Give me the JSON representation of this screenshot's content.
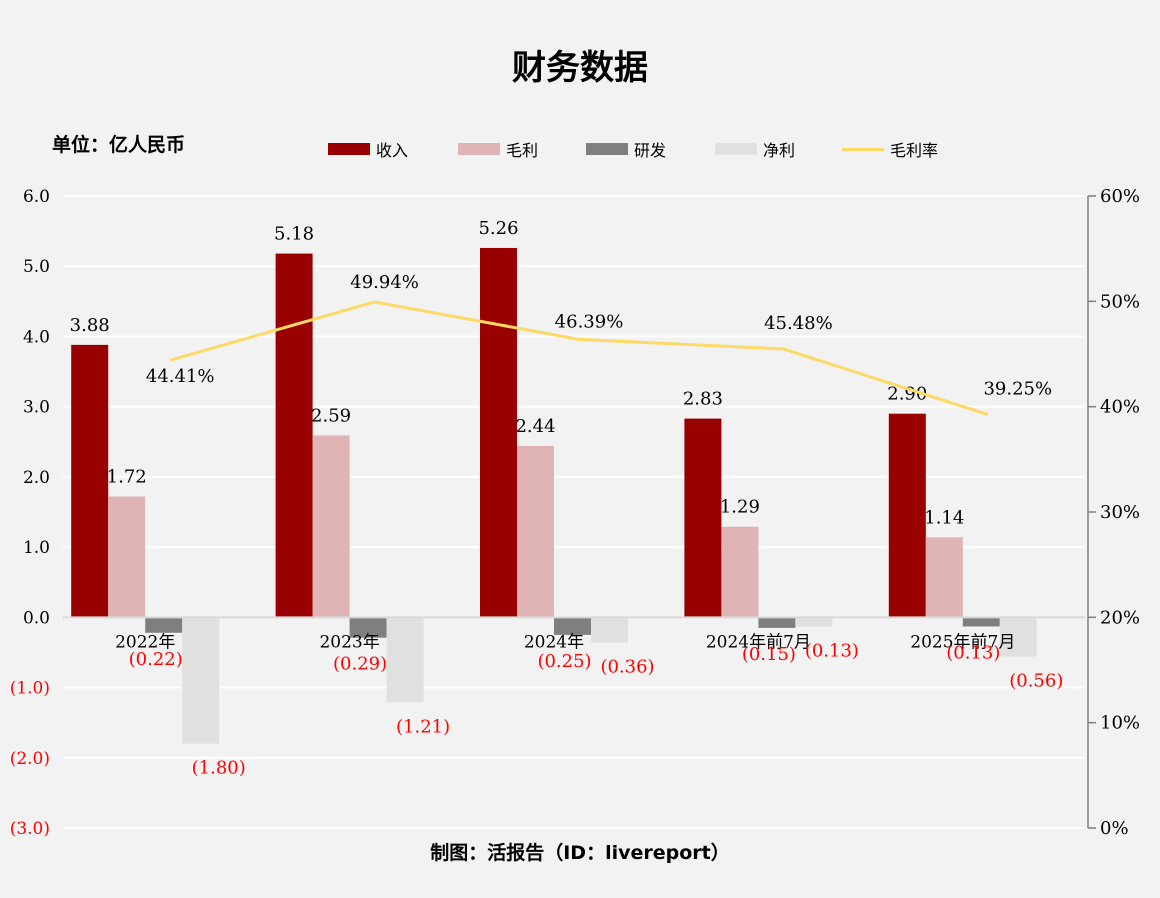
{
  "page": {
    "title": "财务数据",
    "unit_label": "单位：亿人民币",
    "credit": "制图：活报告（ID：livereport）"
  },
  "colors": {
    "revenue": "#990000",
    "gross_profit": "#e0b4b4",
    "rd": "#7f7f7f",
    "net_profit": "#e0e0e0",
    "margin": "#ffd966",
    "negative_text": "#ff0000",
    "gridline": "#ffffff",
    "axis": "#7f7f7f",
    "background": "#f2f2f2"
  },
  "chart_data": {
    "type": "bar",
    "categories": [
      "2022年",
      "2023年",
      "2024年",
      "2024年前7月",
      "2025年前7月"
    ],
    "series": [
      {
        "name": "收入",
        "kind": "bar",
        "values": [
          3.88,
          5.18,
          5.26,
          2.83,
          2.9
        ],
        "labels": [
          "3.88",
          "5.18",
          "5.26",
          "2.83",
          "2.90"
        ]
      },
      {
        "name": "毛利",
        "kind": "bar",
        "values": [
          1.72,
          2.59,
          2.44,
          1.29,
          1.14
        ],
        "labels": [
          "1.72",
          "2.59",
          "2.44",
          "1.29",
          "1.14"
        ]
      },
      {
        "name": "研发",
        "kind": "bar",
        "values": [
          -0.22,
          -0.29,
          -0.25,
          -0.15,
          -0.13
        ],
        "labels": [
          "(0.22)",
          "(0.29)",
          "(0.25)",
          "(0.15)",
          "(0.13)"
        ]
      },
      {
        "name": "净利",
        "kind": "bar",
        "values": [
          -1.8,
          -1.21,
          -0.36,
          -0.13,
          -0.56
        ],
        "labels": [
          "(1.80)",
          "(1.21)",
          "(0.36)",
          "(0.13)",
          "(0.56)"
        ]
      },
      {
        "name": "毛利率",
        "kind": "line",
        "axis": "right",
        "values": [
          44.41,
          49.94,
          46.39,
          45.48,
          39.25
        ],
        "labels": [
          "44.41%",
          "49.94%",
          "46.39%",
          "45.48%",
          "39.25%"
        ]
      }
    ],
    "y_left": {
      "range": [
        -3.0,
        6.0
      ],
      "ticks": [
        -3.0,
        -2.0,
        -1.0,
        0.0,
        1.0,
        2.0,
        3.0,
        4.0,
        5.0,
        6.0
      ],
      "tick_labels": [
        "(3.0)",
        "(2.0)",
        "(1.0)",
        "0.0",
        "1.0",
        "2.0",
        "3.0",
        "4.0",
        "5.0",
        "6.0"
      ]
    },
    "y_right": {
      "range": [
        0,
        60
      ],
      "ticks": [
        0,
        10,
        20,
        30,
        40,
        50,
        60
      ],
      "tick_labels": [
        "0%",
        "10%",
        "20%",
        "30%",
        "40%",
        "50%",
        "60%"
      ]
    },
    "grid": true,
    "legend_position": "top"
  }
}
